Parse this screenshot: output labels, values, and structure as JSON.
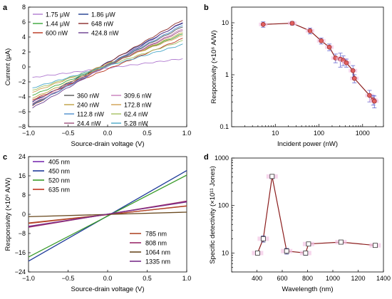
{
  "chart_data": [
    {
      "panel": "a",
      "type": "line",
      "xlabel": "Source-drain voltage (V)",
      "ylabel": "Current (μA)",
      "xlim": [
        -1.0,
        1.0
      ],
      "ylim": [
        -8,
        8
      ],
      "xticks": [
        "-1.0",
        "-0.5",
        "0.0",
        "0.5",
        "1.0"
      ],
      "yticks": [
        "-8",
        "-6",
        "-4",
        "-2",
        "0",
        "2",
        "4",
        "6",
        "8"
      ],
      "x": [
        -0.95,
        0.95
      ],
      "series": [
        {
          "name": "1.75 μW",
          "color": "#b07ad0",
          "values": [
            -1.4,
            1.1
          ]
        },
        {
          "name": "1.86 μW",
          "color": "#1f3c8f",
          "values": [
            -4.7,
            5.9
          ]
        },
        {
          "name": "1.44 μW",
          "color": "#3aa63a",
          "values": [
            -3.8,
            4.4
          ]
        },
        {
          "name": "648 nW",
          "color": "#8a2a2a",
          "values": [
            -5.2,
            6.3
          ]
        },
        {
          "name": "600 nW",
          "color": "#b8341b",
          "values": [
            -4.4,
            3.8
          ]
        },
        {
          "name": "424.8 nW",
          "color": "#6a3d8f",
          "values": [
            -5.5,
            6.0
          ]
        },
        {
          "name": "360 nW",
          "color": "#555555",
          "values": [
            -5.0,
            5.4
          ]
        },
        {
          "name": "309.6 nW",
          "color": "#c77dbb",
          "values": [
            -4.9,
            5.1
          ]
        },
        {
          "name": "240 nW",
          "color": "#bfa040",
          "values": [
            -4.2,
            4.6
          ]
        },
        {
          "name": "172.8 nW",
          "color": "#d0a050",
          "values": [
            -3.4,
            4.2
          ]
        },
        {
          "name": "112.8 nW",
          "color": "#4d8fcc",
          "values": [
            -5.1,
            5.6
          ]
        },
        {
          "name": "62.4 nW",
          "color": "#a4c060",
          "values": [
            -3.1,
            3.5
          ]
        },
        {
          "name": "24.4 nW",
          "color": "#9b4f7a",
          "values": [
            -4.6,
            4.9
          ]
        },
        {
          "name": "5.28 nW",
          "color": "#4aa8c8",
          "values": [
            -2.8,
            3.0
          ]
        }
      ],
      "legend": "top-left and bottom-right"
    },
    {
      "panel": "b",
      "type": "scatter",
      "xscale": "log",
      "yscale": "log",
      "xlabel": "Incident power (nW)",
      "ylabel": "Responsivity (×10⁶ A/W)",
      "xlim": [
        1,
        3000
      ],
      "ylim": [
        0.1,
        20
      ],
      "xticks": [
        "10",
        "100",
        "1000"
      ],
      "yticks": [
        "0.1",
        "1",
        "10"
      ],
      "points": [
        {
          "x": 5.28,
          "y": 9.3,
          "err": 1.1
        },
        {
          "x": 24.4,
          "y": 9.8,
          "err": 0.8
        },
        {
          "x": 62.4,
          "y": 7.0,
          "err": 0.9
        },
        {
          "x": 112.8,
          "y": 4.5,
          "err": 0.6
        },
        {
          "x": 172.8,
          "y": 3.4,
          "err": 0.5
        },
        {
          "x": 240,
          "y": 2.1,
          "err": 0.4
        },
        {
          "x": 309.6,
          "y": 2.0,
          "err": 0.6
        },
        {
          "x": 360,
          "y": 1.9,
          "err": 0.4
        },
        {
          "x": 424.8,
          "y": 1.7,
          "err": 0.3
        },
        {
          "x": 600,
          "y": 1.2,
          "err": 0.3
        },
        {
          "x": 648,
          "y": 0.85,
          "err": 0.15
        },
        {
          "x": 1440,
          "y": 0.4,
          "err": 0.1
        },
        {
          "x": 1750,
          "y": 0.33,
          "err": 0.07
        },
        {
          "x": 1860,
          "y": 0.31,
          "err": 0.08
        }
      ],
      "line_color": "#8b1c1c",
      "marker_color": "#e06060"
    },
    {
      "panel": "c",
      "type": "line",
      "xlabel": "Source-drain voltage (V)",
      "ylabel": "Responsivity (×10⁶ A/W)",
      "xlim": [
        -1.0,
        1.0
      ],
      "ylim": [
        -24,
        24
      ],
      "xticks": [
        "-1.0",
        "-0.5",
        "0.0",
        "0.5",
        "1.0"
      ],
      "yticks": [
        "-24",
        "-16",
        "-8",
        "0",
        "8",
        "16",
        "24"
      ],
      "x": [
        -1.0,
        1.0
      ],
      "series": [
        {
          "name": "405 nm",
          "color": "#7a2fb0",
          "values": [
            -5.2,
            5.3
          ]
        },
        {
          "name": "450 nm",
          "color": "#1e3a9a",
          "values": [
            -19.5,
            18.2
          ]
        },
        {
          "name": "520 nm",
          "color": "#3a9b2a",
          "values": [
            -17.8,
            16.3
          ]
        },
        {
          "name": "635 nm",
          "color": "#c0321d",
          "values": [
            -3.8,
            3.5
          ]
        },
        {
          "name": "785 nm",
          "color": "#b04a2a",
          "values": [
            -3.6,
            3.4
          ]
        },
        {
          "name": "808 nm",
          "color": "#9b2a6a",
          "values": [
            -5.4,
            5.5
          ]
        },
        {
          "name": "1064 nm",
          "color": "#6a4a20",
          "values": [
            -1.0,
            0.9
          ]
        },
        {
          "name": "1335 nm",
          "color": "#7a2e8a",
          "values": [
            -5.0,
            5.1
          ]
        }
      ],
      "legend": "top-left and bottom-right"
    },
    {
      "panel": "d",
      "type": "line",
      "yscale": "log",
      "xlabel": "Wavelength (nm)",
      "ylabel": "Specific detectivity (×10¹¹ Jones)",
      "xlim": [
        200,
        1400
      ],
      "ylim": [
        4,
        1000
      ],
      "xticks": [
        "400",
        "600",
        "800",
        "1000",
        "1200",
        "1400"
      ],
      "yticks": [
        "10",
        "100",
        "1000"
      ],
      "points": [
        {
          "x": 405,
          "y": 10,
          "err": 0.8
        },
        {
          "x": 450,
          "y": 20,
          "err": 3
        },
        {
          "x": 520,
          "y": 410,
          "err": 40
        },
        {
          "x": 635,
          "y": 11,
          "err": 1.5
        },
        {
          "x": 785,
          "y": 10,
          "err": 1
        },
        {
          "x": 808,
          "y": 15.5,
          "err": 1.2
        },
        {
          "x": 1064,
          "y": 17,
          "err": 1.2
        },
        {
          "x": 1335,
          "y": 14.5,
          "err": 1
        }
      ],
      "line_color": "#8b1c1c"
    }
  ],
  "panels": {
    "a": {
      "letter": "a"
    },
    "b": {
      "letter": "b"
    },
    "c": {
      "letter": "c"
    },
    "d": {
      "letter": "d"
    }
  }
}
